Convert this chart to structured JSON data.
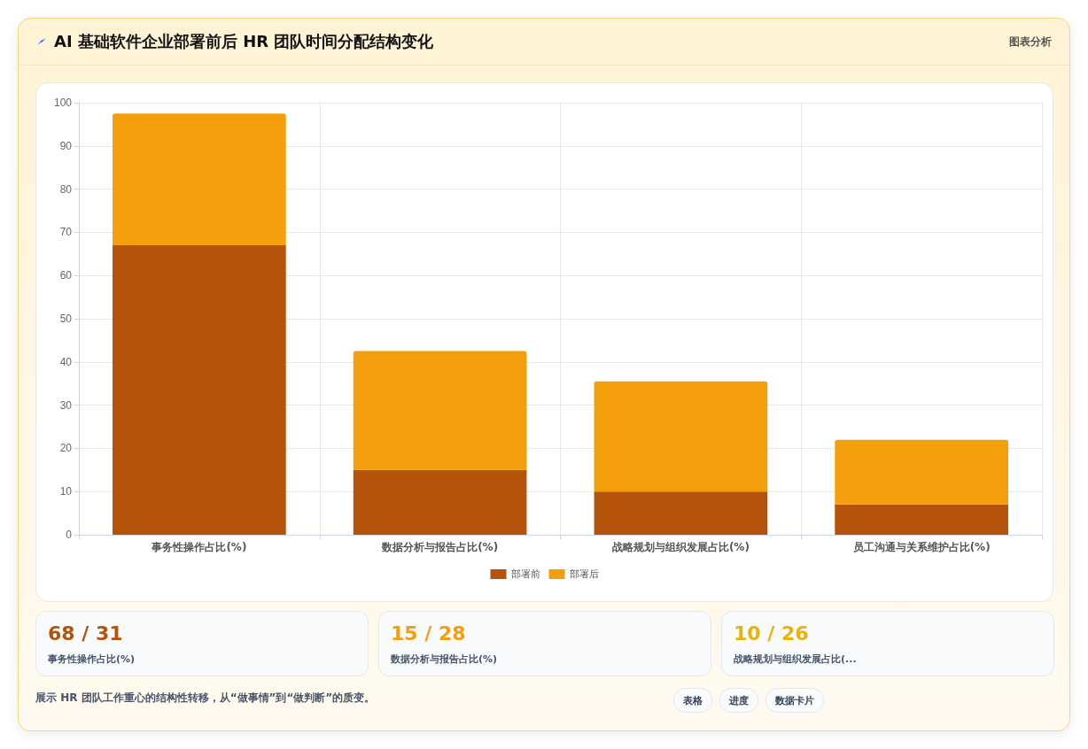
{
  "chart_data": [
    {
      "type": "bar",
      "title": "AI 基础软件企业部署前后 HR 团队时间分配结构变化",
      "annotations": [
        "图表分析"
      ],
      "categories": [
        "事务性操作占比(%)",
        "数据分析与报告占比(%)",
        "战略规划与组织发展占比(%)",
        "员工沟通与关系维护占比(%)"
      ],
      "series": [
        {
          "name": "部署前",
          "color": "#b45309",
          "values": [
            67,
            15,
            10,
            7
          ]
        },
        {
          "name": "部署后",
          "color": "#f59e0b",
          "values": [
            30.5,
            27.5,
            25.5,
            15
          ]
        }
      ],
      "stacked": true,
      "ylim": [
        0,
        100
      ],
      "yticks": [
        0,
        10,
        20,
        30,
        40,
        50,
        60,
        70,
        80,
        90,
        100
      ],
      "grid": true,
      "legend": "bottom"
    },
    {
      "type": "other",
      "colors": [
        "#b45309",
        "#f59e0b",
        "#eab308"
      ],
      "annotations": [
        "68 / 31",
        "事务性操作占比(%)",
        "15 / 28",
        "数据分析与报告占比(%)",
        "10 / 26",
        "战略规划与组织发展占比(...",
        "展示 HR 团队工作重心的结构性转移，从“做事情”到“做判断”的质变。",
        "表格",
        "进度",
        "数据卡片"
      ]
    }
  ]
}
